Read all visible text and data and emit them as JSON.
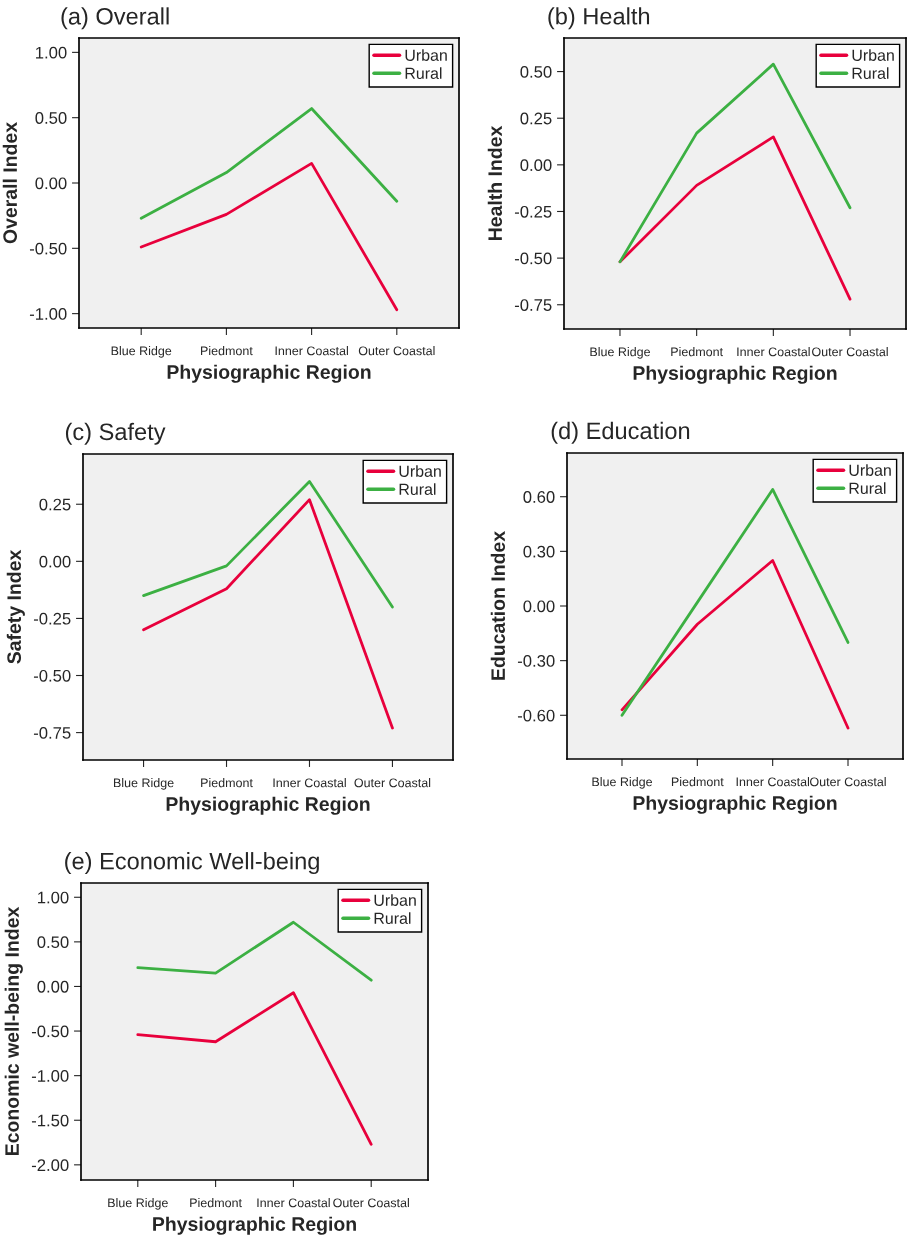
{
  "chart_data": [
    {
      "type": "line",
      "title": "(a) Overall",
      "xlabel": "Physiographic Region",
      "ylabel": "Overall Index",
      "categories": [
        "Blue Ridge",
        "Piedmont",
        "Inner Coastal",
        "Outer Coastal"
      ],
      "series": [
        {
          "name": "Urban",
          "color": "#e8003c",
          "values": [
            -0.49,
            -0.24,
            0.15,
            -0.97
          ]
        },
        {
          "name": "Rural",
          "color": "#3cb043",
          "values": [
            -0.27,
            0.08,
            0.57,
            -0.14
          ]
        }
      ],
      "ylim": [
        -1.11,
        1.11
      ],
      "yticks": [
        {
          "value": -1,
          "label": "-1.00"
        },
        {
          "value": -0.5,
          "label": "-0.50"
        },
        {
          "value": 0,
          "label": "0.00"
        },
        {
          "value": 0.5,
          "label": "0.50"
        },
        {
          "value": 1,
          "label": "1.00"
        }
      ],
      "legend": "top right",
      "grid": false
    },
    {
      "type": "line",
      "title": "(b) Health",
      "xlabel": "Physiographic Region",
      "ylabel": "Health Index",
      "categories": [
        "Blue Ridge",
        "Piedmont",
        "Inner Coastal",
        "Outer Coastal"
      ],
      "series": [
        {
          "name": "Urban",
          "color": "#e8003c",
          "values": [
            -0.52,
            -0.11,
            0.15,
            -0.72
          ]
        },
        {
          "name": "Rural",
          "color": "#3cb043",
          "values": [
            -0.52,
            0.17,
            0.54,
            -0.23
          ]
        }
      ],
      "ylim": [
        -0.88,
        0.68
      ],
      "yticks": [
        {
          "value": -0.75,
          "label": "-0.75"
        },
        {
          "value": -0.5,
          "label": "-0.50"
        },
        {
          "value": -0.25,
          "label": "-0.25"
        },
        {
          "value": 0,
          "label": "0.00"
        },
        {
          "value": 0.25,
          "label": "0.25"
        },
        {
          "value": 0.5,
          "label": "0.50"
        }
      ],
      "legend": "top right",
      "grid": false
    },
    {
      "type": "line",
      "title": "(c) Safety",
      "xlabel": "Physiographic Region",
      "ylabel": "Safety Index",
      "categories": [
        "Blue Ridge",
        "Piedmont",
        "Inner Coastal",
        "Outer Coastal"
      ],
      "series": [
        {
          "name": "Urban",
          "color": "#e8003c",
          "values": [
            -0.3,
            -0.12,
            0.27,
            -0.73
          ]
        },
        {
          "name": "Rural",
          "color": "#3cb043",
          "values": [
            -0.15,
            -0.02,
            0.35,
            -0.2
          ]
        }
      ],
      "ylim": [
        -0.87,
        0.47
      ],
      "yticks": [
        {
          "value": -0.75,
          "label": "-0.75"
        },
        {
          "value": -0.5,
          "label": "-0.50"
        },
        {
          "value": -0.25,
          "label": "-0.25"
        },
        {
          "value": 0,
          "label": "0.00"
        },
        {
          "value": 0.25,
          "label": "0.25"
        }
      ],
      "legend": "top right",
      "grid": false
    },
    {
      "type": "line",
      "title": "(d) Education",
      "xlabel": "Physiographic Region",
      "ylabel": "Education Index",
      "categories": [
        "Blue Ridge",
        "Piedmont",
        "Inner Coastal",
        "Outer Coastal"
      ],
      "series": [
        {
          "name": "Urban",
          "color": "#e8003c",
          "values": [
            -0.57,
            -0.1,
            0.25,
            -0.67
          ]
        },
        {
          "name": "Rural",
          "color": "#3cb043",
          "values": [
            -0.6,
            0.02,
            0.64,
            -0.2
          ]
        }
      ],
      "ylim": [
        -0.84,
        0.84
      ],
      "yticks": [
        {
          "value": -0.6,
          "label": "-0.60"
        },
        {
          "value": -0.3,
          "label": "-0.30"
        },
        {
          "value": 0,
          "label": "0.00"
        },
        {
          "value": 0.3,
          "label": "0.30"
        },
        {
          "value": 0.6,
          "label": "0.60"
        }
      ],
      "legend": "top right",
      "grid": false
    },
    {
      "type": "line",
      "title": "(e) Economic Well-being",
      "xlabel": "Physiographic Region",
      "ylabel": "Economic well-being Index",
      "categories": [
        "Blue Ridge",
        "Piedmont",
        "Inner Coastal",
        "Outer Coastal"
      ],
      "series": [
        {
          "name": "Urban",
          "color": "#e8003c",
          "values": [
            -0.54,
            -0.62,
            -0.07,
            -1.77
          ]
        },
        {
          "name": "Rural",
          "color": "#3cb043",
          "values": [
            0.21,
            0.15,
            0.72,
            0.07
          ]
        }
      ],
      "ylim": [
        -2.17,
        1.16
      ],
      "yticks": [
        {
          "value": -2,
          "label": "-2.00"
        },
        {
          "value": -1.5,
          "label": "-1.50"
        },
        {
          "value": -1,
          "label": "-1.00"
        },
        {
          "value": -0.5,
          "label": "-0.50"
        },
        {
          "value": 0,
          "label": "0.00"
        },
        {
          "value": 0.5,
          "label": "0.50"
        },
        {
          "value": 1,
          "label": "1.00"
        }
      ],
      "legend": "top right",
      "grid": false
    }
  ]
}
